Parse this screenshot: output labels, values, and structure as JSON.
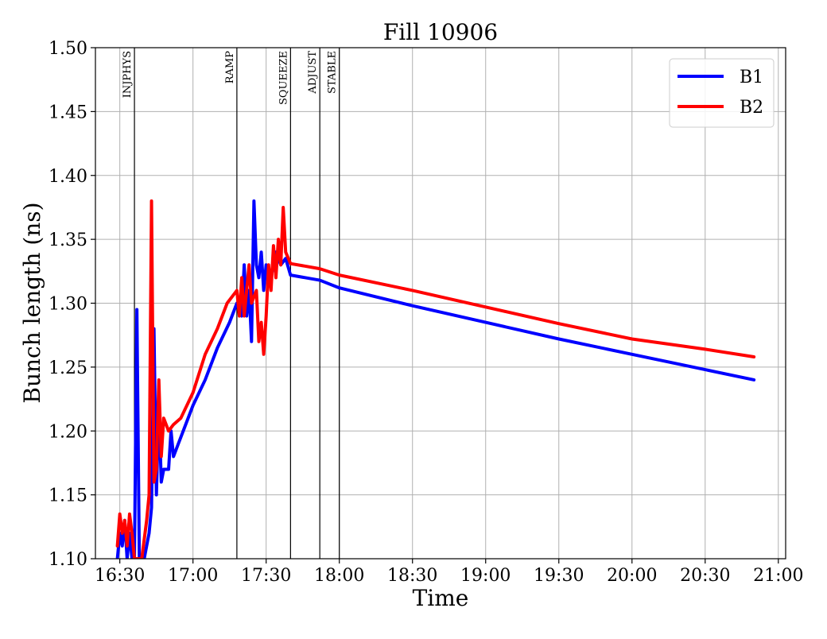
{
  "chart_data": {
    "type": "line",
    "title": "Fill 10906",
    "xlabel": "Time",
    "ylabel": "Bunch length (ns)",
    "xlim": [
      "16:20",
      "21:03"
    ],
    "ylim": [
      1.1,
      1.5
    ],
    "x_ticks": [
      "16:30",
      "17:00",
      "17:30",
      "18:00",
      "18:30",
      "19:00",
      "19:30",
      "20:00",
      "20:30",
      "21:00"
    ],
    "y_ticks": [
      "1.10",
      "1.15",
      "1.20",
      "1.25",
      "1.30",
      "1.35",
      "1.40",
      "1.45",
      "1.50"
    ],
    "grid": true,
    "legend_position": "top-right",
    "phases": [
      {
        "label": "INJPHYS",
        "time": "16:36"
      },
      {
        "label": "RAMP",
        "time": "17:18"
      },
      {
        "label": "SQUEEZE",
        "time": "17:40"
      },
      {
        "label": "ADJUST",
        "time": "17:52"
      },
      {
        "label": "STABLE",
        "time": "18:00"
      }
    ],
    "series": [
      {
        "name": "B1",
        "color": "#0000ff",
        "points": [
          [
            "16:29",
            1.1
          ],
          [
            "16:30",
            1.12
          ],
          [
            "16:31",
            1.11
          ],
          [
            "16:32",
            1.13
          ],
          [
            "16:33",
            1.1
          ],
          [
            "16:34",
            1.12
          ],
          [
            "16:35",
            1.1
          ],
          [
            "16:36",
            1.1
          ],
          [
            "16:37",
            1.295
          ],
          [
            "16:38",
            1.1
          ],
          [
            "16:40",
            1.1
          ],
          [
            "16:42",
            1.12
          ],
          [
            "16:43",
            1.14
          ],
          [
            "16:44",
            1.28
          ],
          [
            "16:45",
            1.15
          ],
          [
            "16:46",
            1.22
          ],
          [
            "16:47",
            1.16
          ],
          [
            "16:48",
            1.17
          ],
          [
            "16:50",
            1.17
          ],
          [
            "16:51",
            1.2
          ],
          [
            "16:52",
            1.18
          ],
          [
            "16:54",
            1.19
          ],
          [
            "16:56",
            1.2
          ],
          [
            "17:00",
            1.22
          ],
          [
            "17:05",
            1.24
          ],
          [
            "17:10",
            1.265
          ],
          [
            "17:15",
            1.285
          ],
          [
            "17:18",
            1.3
          ],
          [
            "17:20",
            1.29
          ],
          [
            "17:21",
            1.33
          ],
          [
            "17:22",
            1.29
          ],
          [
            "17:23",
            1.31
          ],
          [
            "17:24",
            1.27
          ],
          [
            "17:25",
            1.38
          ],
          [
            "17:26",
            1.33
          ],
          [
            "17:27",
            1.32
          ],
          [
            "17:28",
            1.34
          ],
          [
            "17:29",
            1.31
          ],
          [
            "17:30",
            1.33
          ],
          [
            "17:32",
            1.32
          ],
          [
            "17:34",
            1.34
          ],
          [
            "17:36",
            1.33
          ],
          [
            "17:38",
            1.335
          ],
          [
            "17:40",
            1.322
          ],
          [
            "17:52",
            1.318
          ],
          [
            "18:00",
            1.312
          ],
          [
            "18:30",
            1.298
          ],
          [
            "19:00",
            1.285
          ],
          [
            "19:30",
            1.272
          ],
          [
            "20:00",
            1.26
          ],
          [
            "20:30",
            1.248
          ],
          [
            "20:50",
            1.24
          ]
        ]
      },
      {
        "name": "B2",
        "color": "#ff0000",
        "points": [
          [
            "16:29",
            1.11
          ],
          [
            "16:30",
            1.135
          ],
          [
            "16:31",
            1.12
          ],
          [
            "16:32",
            1.13
          ],
          [
            "16:33",
            1.11
          ],
          [
            "16:34",
            1.135
          ],
          [
            "16:35",
            1.12
          ],
          [
            "16:36",
            1.1
          ],
          [
            "16:38",
            1.1
          ],
          [
            "16:39",
            1.1
          ],
          [
            "16:41",
            1.13
          ],
          [
            "16:42",
            1.15
          ],
          [
            "16:43",
            1.38
          ],
          [
            "16:44",
            1.16
          ],
          [
            "16:45",
            1.17
          ],
          [
            "16:46",
            1.24
          ],
          [
            "16:47",
            1.18
          ],
          [
            "16:48",
            1.21
          ],
          [
            "16:50",
            1.2
          ],
          [
            "16:52",
            1.205
          ],
          [
            "16:55",
            1.21
          ],
          [
            "17:00",
            1.23
          ],
          [
            "17:05",
            1.26
          ],
          [
            "17:10",
            1.28
          ],
          [
            "17:14",
            1.3
          ],
          [
            "17:18",
            1.31
          ],
          [
            "17:19",
            1.29
          ],
          [
            "17:20",
            1.32
          ],
          [
            "17:21",
            1.29
          ],
          [
            "17:22",
            1.31
          ],
          [
            "17:23",
            1.33
          ],
          [
            "17:24",
            1.3
          ],
          [
            "17:26",
            1.31
          ],
          [
            "17:27",
            1.27
          ],
          [
            "17:28",
            1.285
          ],
          [
            "17:29",
            1.26
          ],
          [
            "17:30",
            1.29
          ],
          [
            "17:31",
            1.33
          ],
          [
            "17:32",
            1.31
          ],
          [
            "17:33",
            1.345
          ],
          [
            "17:34",
            1.32
          ],
          [
            "17:35",
            1.35
          ],
          [
            "17:36",
            1.33
          ],
          [
            "17:37",
            1.375
          ],
          [
            "17:38",
            1.34
          ],
          [
            "17:40",
            1.331
          ],
          [
            "17:52",
            1.327
          ],
          [
            "18:00",
            1.322
          ],
          [
            "18:30",
            1.31
          ],
          [
            "19:00",
            1.297
          ],
          [
            "19:30",
            1.284
          ],
          [
            "20:00",
            1.272
          ],
          [
            "20:30",
            1.264
          ],
          [
            "20:50",
            1.258
          ]
        ]
      }
    ]
  }
}
